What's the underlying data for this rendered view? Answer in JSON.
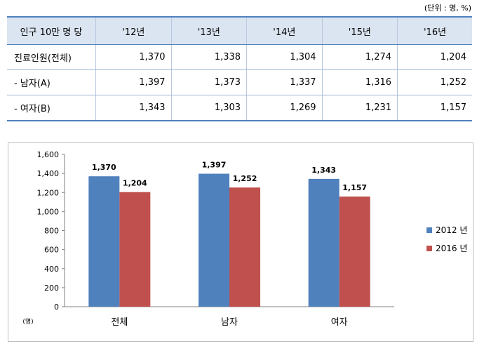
{
  "unit_note": "(단위 : 명, %)",
  "table": {
    "headers": [
      "인구 10만 명 당",
      "'12년",
      "'13년",
      "'14년",
      "'15년",
      "'16년"
    ],
    "rows": [
      {
        "label": "진료인원(전체)",
        "values": [
          "1,370",
          "1,338",
          "1,304",
          "1,274",
          "1,204"
        ]
      },
      {
        "label": "- 남자(A)",
        "values": [
          "1,397",
          "1,373",
          "1,337",
          "1,316",
          "1,252"
        ]
      },
      {
        "label": "- 여자(B)",
        "values": [
          "1,343",
          "1,303",
          "1,269",
          "1,231",
          "1,157"
        ]
      }
    ]
  },
  "chart_data": {
    "type": "bar",
    "categories": [
      "전체",
      "남자",
      "여자"
    ],
    "series": [
      {
        "name": "2012 년",
        "values": [
          1370,
          1397,
          1343
        ],
        "color": "#4f81bd"
      },
      {
        "name": "2016 년",
        "values": [
          1204,
          1252,
          1157
        ],
        "color": "#c0504d"
      }
    ],
    "data_labels": [
      [
        "1,370",
        "1,397",
        "1,343"
      ],
      [
        "1,204",
        "1,252",
        "1,157"
      ]
    ],
    "ylim": [
      0,
      1600
    ],
    "yticks": [
      "0",
      "200",
      "400",
      "600",
      "800",
      "1,000",
      "1,200",
      "1,400",
      "1,600"
    ],
    "ylabel": "(명)",
    "legend_position": "right",
    "grid": false
  }
}
